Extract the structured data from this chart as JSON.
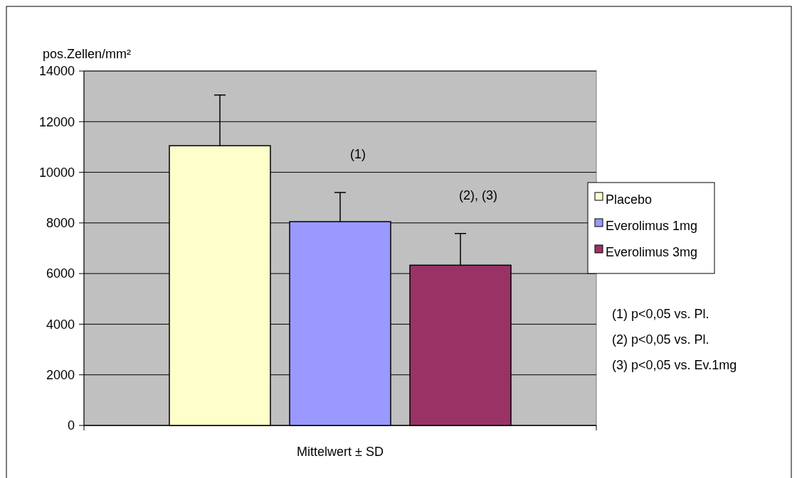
{
  "chart_data": {
    "type": "bar",
    "ylabel": "pos.Zellen/mm²",
    "categories": [
      "Mittelwert ± SD"
    ],
    "series": [
      {
        "name": "Placebo",
        "color": "#ffffcc",
        "values": [
          11050
        ],
        "errors": [
          [
            11050,
            13050
          ]
        ]
      },
      {
        "name": "Everolimus 1mg",
        "color": "#9999ff",
        "values": [
          8050
        ],
        "errors": [
          [
            8050,
            9200
          ]
        ]
      },
      {
        "name": "Everolimus 3mg",
        "color": "#993366",
        "values": [
          6330
        ],
        "errors": [
          [
            6330,
            7580
          ]
        ]
      }
    ],
    "ylim": [
      0,
      14000
    ],
    "yticks": [
      0,
      2000,
      4000,
      6000,
      8000,
      10000,
      12000,
      14000
    ],
    "grid": "y",
    "legend": "right",
    "annotations": [
      "(1)",
      "(2), (3)",
      "(1) p<0,05 vs. Pl.",
      "(2) p<0,05 vs. Pl.",
      "(3) p<0,05 vs. Ev.1mg"
    ]
  }
}
